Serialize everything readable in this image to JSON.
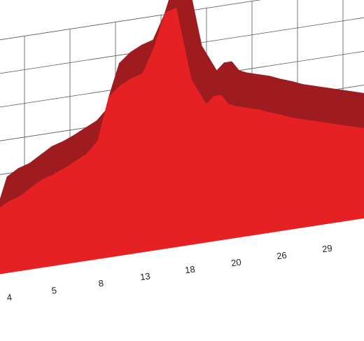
{
  "chart_data": {
    "type": "area",
    "style": "3d-elevation-profile",
    "title": "",
    "xlabel": "",
    "ylabel": "",
    "tick_labels": [
      "4",
      "5",
      "8",
      "13",
      "18",
      "20",
      "26",
      "29"
    ],
    "x": [
      0,
      3,
      6,
      9,
      12,
      15,
      18,
      21,
      24,
      27,
      30,
      33,
      36,
      39,
      42,
      45,
      48,
      50,
      52,
      54,
      56,
      58,
      60,
      62,
      64,
      67,
      70,
      73,
      76,
      79,
      82,
      85,
      88,
      91,
      94,
      97,
      100
    ],
    "values": [
      95,
      105,
      110,
      120,
      130,
      135,
      142,
      150,
      158,
      175,
      238,
      252,
      260,
      265,
      300,
      350,
      355,
      300,
      245,
      225,
      205,
      215,
      215,
      200,
      195,
      190,
      185,
      178,
      172,
      165,
      160,
      155,
      150,
      145,
      140,
      135,
      130
    ],
    "ylim": [
      0,
      400
    ],
    "grid": true,
    "colors": {
      "front": "#e52124",
      "top": "#9e1c1f",
      "grid": "#555555",
      "text": "#222222"
    }
  }
}
